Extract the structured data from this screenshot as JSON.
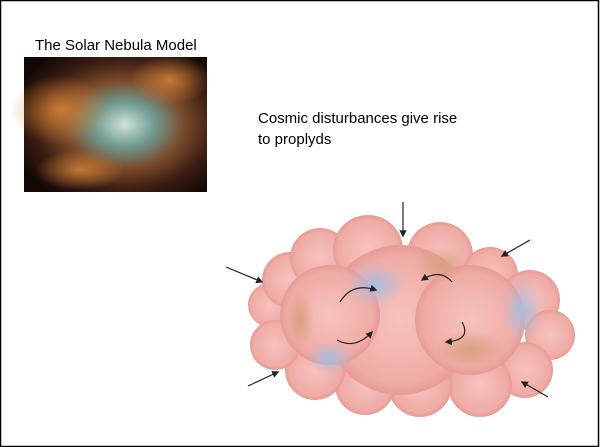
{
  "slide": {
    "title": "The Solar Nebula Model",
    "caption_lines": [
      "Cosmic disturbances give rise",
      "to proplyds"
    ]
  }
}
